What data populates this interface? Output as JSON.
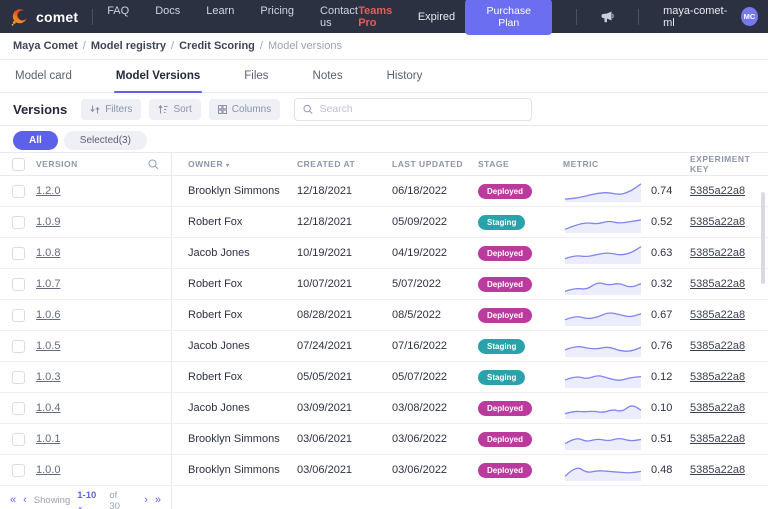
{
  "navbar": {
    "brand": "comet",
    "menu": [
      "FAQ",
      "Docs",
      "Learn",
      "Pricing",
      "Contact us"
    ],
    "plan_label": "Teams Pro",
    "plan_status": "Expired",
    "purchase_button": "Purchase Plan",
    "workspace": "maya-comet-ml",
    "avatar_initials": "MC"
  },
  "breadcrumb": {
    "items": [
      "Maya Comet",
      "Model registry",
      "Credit Scoring",
      "Model versions"
    ]
  },
  "tabs": {
    "items": [
      "Model card",
      "Model Versions",
      "Files",
      "Notes",
      "History"
    ],
    "active_index": 1
  },
  "toolbar": {
    "title": "Versions",
    "filters_label": "Filters",
    "sort_label": "Sort",
    "columns_label": "Columns",
    "search_placeholder": "Search"
  },
  "filter_pills": {
    "all": "All",
    "selected": "Selected(3)"
  },
  "table": {
    "columns": [
      "Version",
      "Owner",
      "Created at",
      "Last updated",
      "Stage",
      "Metric",
      "Experiment key"
    ],
    "rows": [
      {
        "version": "1.2.0",
        "owner": "Brooklyn Simmons",
        "created_at": "12/18/2021",
        "last_updated": "06/18/2022",
        "stage": "Deployed",
        "metric": "0.74",
        "experiment_key": "5385a22a8",
        "sparkline": [
          0.05,
          0.1,
          0.25,
          0.4,
          0.45,
          0.3,
          0.5,
          0.95
        ]
      },
      {
        "version": "1.0.9",
        "owner": "Robert Fox",
        "created_at": "12/18/2021",
        "last_updated": "05/09/2022",
        "stage": "Staging",
        "metric": "0.52",
        "experiment_key": "5385a22a8",
        "sparkline": [
          0.1,
          0.35,
          0.5,
          0.4,
          0.6,
          0.45,
          0.55,
          0.65
        ]
      },
      {
        "version": "1.0.8",
        "owner": "Jacob Jones",
        "created_at": "10/19/2021",
        "last_updated": "04/19/2022",
        "stage": "Deployed",
        "metric": "0.63",
        "experiment_key": "5385a22a8",
        "sparkline": [
          0.2,
          0.4,
          0.3,
          0.45,
          0.55,
          0.4,
          0.5,
          0.9
        ]
      },
      {
        "version": "1.0.7",
        "owner": "Robert Fox",
        "created_at": "10/07/2021",
        "last_updated": "5/07/2022",
        "stage": "Deployed",
        "metric": "0.32",
        "experiment_key": "5385a22a8",
        "sparkline": [
          0.1,
          0.3,
          0.2,
          0.65,
          0.45,
          0.6,
          0.3,
          0.55
        ]
      },
      {
        "version": "1.0.6",
        "owner": "Robert Fox",
        "created_at": "08/28/2021",
        "last_updated": "08/5/2022",
        "stage": "Deployed",
        "metric": "0.67",
        "experiment_key": "5385a22a8",
        "sparkline": [
          0.25,
          0.5,
          0.3,
          0.4,
          0.7,
          0.55,
          0.4,
          0.6
        ]
      },
      {
        "version": "1.0.5",
        "owner": "Jacob Jones",
        "created_at": "07/24/2021",
        "last_updated": "07/16/2022",
        "stage": "Staging",
        "metric": "0.76",
        "experiment_key": "5385a22a8",
        "sparkline": [
          0.3,
          0.55,
          0.4,
          0.35,
          0.5,
          0.25,
          0.2,
          0.45
        ]
      },
      {
        "version": "1.0.3",
        "owner": "Robert Fox",
        "created_at": "05/05/2021",
        "last_updated": "05/07/2022",
        "stage": "Staging",
        "metric": "0.12",
        "experiment_key": "5385a22a8",
        "sparkline": [
          0.35,
          0.6,
          0.4,
          0.65,
          0.45,
          0.3,
          0.5,
          0.55
        ]
      },
      {
        "version": "1.0.4",
        "owner": "Jacob Jones",
        "created_at": "03/09/2021",
        "last_updated": "03/08/2022",
        "stage": "Deployed",
        "metric": "0.10",
        "experiment_key": "5385a22a8",
        "sparkline": [
          0.2,
          0.35,
          0.3,
          0.35,
          0.25,
          0.45,
          0.3,
          0.75,
          0.4
        ]
      },
      {
        "version": "1.0.1",
        "owner": "Brooklyn Simmons",
        "created_at": "03/06/2021",
        "last_updated": "03/06/2022",
        "stage": "Deployed",
        "metric": "0.51",
        "experiment_key": "5385a22a8",
        "sparkline": [
          0.25,
          0.65,
          0.35,
          0.55,
          0.4,
          0.6,
          0.4,
          0.5
        ]
      },
      {
        "version": "1.0.0",
        "owner": "Brooklyn Simmons",
        "created_at": "03/06/2021",
        "last_updated": "03/06/2022",
        "stage": "Deployed",
        "metric": "0.48",
        "experiment_key": "5385a22a8",
        "sparkline": [
          0.15,
          0.8,
          0.35,
          0.5,
          0.45,
          0.4,
          0.35,
          0.45
        ]
      }
    ]
  },
  "pagination": {
    "first": "«",
    "prev": "‹",
    "showing": "Showing",
    "range": "1-10",
    "of_total": "of 30",
    "next": "›",
    "last": "»"
  },
  "colors": {
    "navbar_bg": "#2b3140",
    "accent_purple": "#5d60e8",
    "purchase_button": "#6b6ef0",
    "plan_label_red": "#e85b5b",
    "badge_deployed": "#bb3a9d",
    "badge_staging": "#2aa2ab",
    "sparkline_stroke": "#8184ee",
    "sparkline_fill": "#ecedfc"
  }
}
